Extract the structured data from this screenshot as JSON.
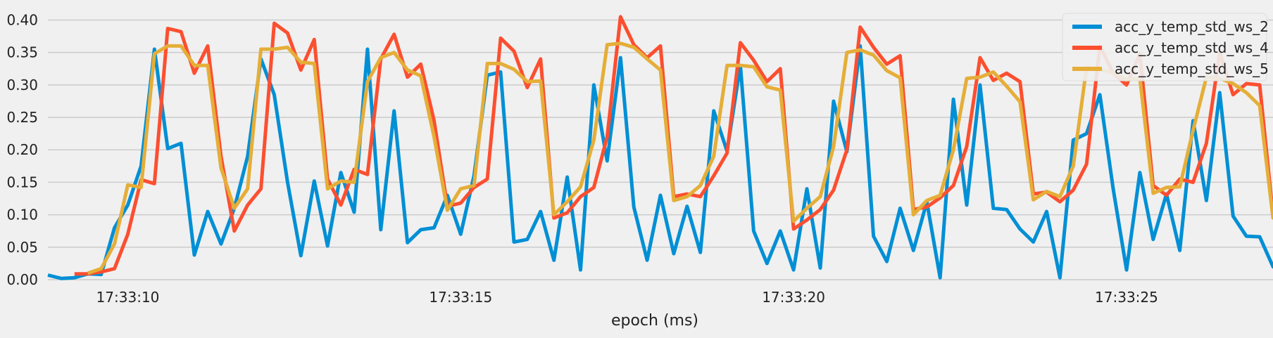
{
  "chart_data": {
    "type": "line",
    "title": "",
    "xlabel": "epoch (ms)",
    "ylabel": "",
    "xlim": [
      8.8,
      27.2
    ],
    "ylim": [
      0,
      0.42
    ],
    "x_ticks": [
      {
        "value": 10,
        "label": "17:33:10"
      },
      {
        "value": 15,
        "label": "17:33:15"
      },
      {
        "value": 20,
        "label": "17:33:20"
      },
      {
        "value": 25,
        "label": "17:33:25"
      }
    ],
    "y_ticks": [
      {
        "value": 0.0,
        "label": "0.00"
      },
      {
        "value": 0.05,
        "label": "0.05"
      },
      {
        "value": 0.1,
        "label": "0.10"
      },
      {
        "value": 0.15,
        "label": "0.15"
      },
      {
        "value": 0.2,
        "label": "0.20"
      },
      {
        "value": 0.25,
        "label": "0.25"
      },
      {
        "value": 0.3,
        "label": "0.30"
      },
      {
        "value": 0.35,
        "label": "0.35"
      },
      {
        "value": 0.4,
        "label": "0.40"
      }
    ],
    "grid": true,
    "legend_position": "top-right",
    "x_step": 0.2,
    "series": [
      {
        "name": "acc_y_temp_std_ws_2",
        "color": "#008fd5",
        "x_start": 8.8,
        "values": [
          0.007,
          0.002,
          0.003,
          0.009,
          0.008,
          0.08,
          0.115,
          0.175,
          0.355,
          0.202,
          0.21,
          0.038,
          0.105,
          0.055,
          0.11,
          0.19,
          0.34,
          0.285,
          0.15,
          0.037,
          0.152,
          0.052,
          0.165,
          0.104,
          0.355,
          0.077,
          0.26,
          0.057,
          0.077,
          0.08,
          0.13,
          0.07,
          0.16,
          0.315,
          0.32,
          0.058,
          0.062,
          0.105,
          0.03,
          0.158,
          0.015,
          0.3,
          0.183,
          0.342,
          0.112,
          0.03,
          0.13,
          0.04,
          0.113,
          0.042,
          0.26,
          0.198,
          0.33,
          0.075,
          0.025,
          0.075,
          0.015,
          0.14,
          0.018,
          0.275,
          0.197,
          0.36,
          0.067,
          0.028,
          0.11,
          0.045,
          0.12,
          0.003,
          0.278,
          0.115,
          0.3,
          0.11,
          0.108,
          0.078,
          0.058,
          0.105,
          0.003,
          0.215,
          0.225,
          0.285,
          0.14,
          0.015,
          0.165,
          0.062,
          0.132,
          0.045,
          0.245,
          0.122,
          0.288,
          0.098,
          0.067,
          0.066,
          0.02,
          0.007,
          0.001,
          0.003,
          0.006
        ]
      },
      {
        "name": "acc_y_temp_std_ws_4",
        "color": "#fc4f30",
        "x_start": 9.2,
        "values": [
          0.009,
          0.009,
          0.012,
          0.017,
          0.07,
          0.154,
          0.148,
          0.387,
          0.382,
          0.318,
          0.36,
          0.19,
          0.075,
          0.115,
          0.14,
          0.395,
          0.38,
          0.323,
          0.37,
          0.155,
          0.115,
          0.17,
          0.162,
          0.34,
          0.378,
          0.312,
          0.332,
          0.245,
          0.113,
          0.118,
          0.142,
          0.155,
          0.372,
          0.352,
          0.296,
          0.34,
          0.095,
          0.103,
          0.128,
          0.142,
          0.22,
          0.405,
          0.362,
          0.342,
          0.36,
          0.128,
          0.132,
          0.128,
          0.16,
          0.195,
          0.365,
          0.338,
          0.305,
          0.325,
          0.078,
          0.092,
          0.108,
          0.138,
          0.2,
          0.389,
          0.358,
          0.332,
          0.345,
          0.108,
          0.112,
          0.126,
          0.145,
          0.205,
          0.342,
          0.307,
          0.318,
          0.305,
          0.132,
          0.135,
          0.12,
          0.138,
          0.178,
          0.36,
          0.318,
          0.3,
          0.348,
          0.145,
          0.13,
          0.155,
          0.15,
          0.21,
          0.35,
          0.285,
          0.302,
          0.3,
          0.1,
          0.103,
          0.05,
          0.015,
          0.005,
          0.0
        ]
      },
      {
        "name": "acc_y_temp_std_ws_5",
        "color": "#e5ae38",
        "x_start": 9.4,
        "values": [
          0.01,
          0.017,
          0.055,
          0.146,
          0.142,
          0.348,
          0.36,
          0.36,
          0.33,
          0.33,
          0.172,
          0.11,
          0.14,
          0.355,
          0.355,
          0.358,
          0.335,
          0.333,
          0.14,
          0.152,
          0.15,
          0.305,
          0.342,
          0.35,
          0.323,
          0.314,
          0.22,
          0.107,
          0.14,
          0.145,
          0.333,
          0.333,
          0.324,
          0.305,
          0.306,
          0.1,
          0.12,
          0.143,
          0.215,
          0.362,
          0.364,
          0.358,
          0.34,
          0.323,
          0.122,
          0.128,
          0.145,
          0.19,
          0.33,
          0.33,
          0.328,
          0.297,
          0.292,
          0.09,
          0.11,
          0.128,
          0.205,
          0.35,
          0.354,
          0.346,
          0.322,
          0.311,
          0.1,
          0.122,
          0.13,
          0.2,
          0.31,
          0.312,
          0.32,
          0.298,
          0.274,
          0.123,
          0.136,
          0.128,
          0.175,
          0.327,
          0.324,
          0.318,
          0.308,
          0.31,
          0.133,
          0.142,
          0.143,
          0.23,
          0.312,
          0.31,
          0.302,
          0.288,
          0.268,
          0.095,
          0.097,
          0.047,
          0.015,
          0.007
        ]
      }
    ]
  }
}
